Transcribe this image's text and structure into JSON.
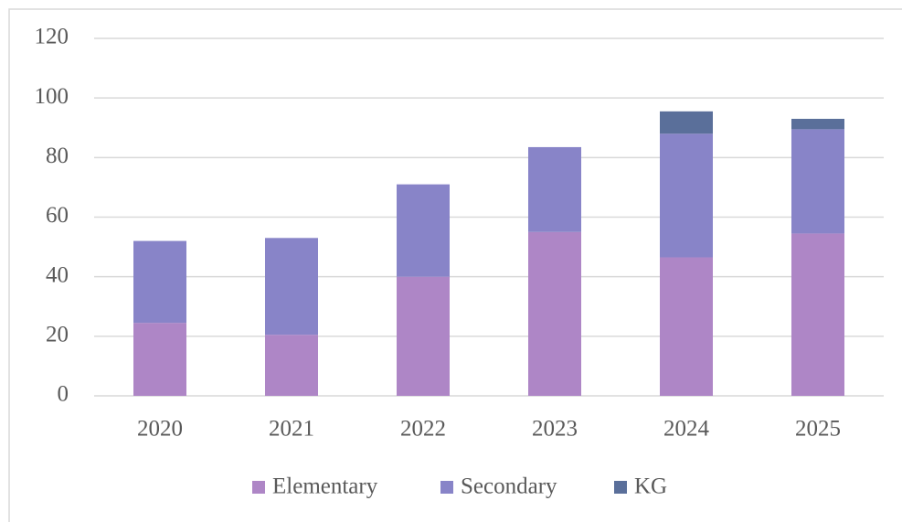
{
  "chart_data": {
    "type": "stacked_bar",
    "categories": [
      "2020",
      "2021",
      "2022",
      "2023",
      "2024",
      "2025"
    ],
    "series": [
      {
        "name": "Elementary",
        "color": "#ae86c6",
        "values": [
          24.5,
          20.5,
          40,
          55,
          46.5,
          54.5
        ]
      },
      {
        "name": "Secondary",
        "color": "#8884c8",
        "values": [
          27.5,
          32.5,
          31,
          28.5,
          41.5,
          35
        ]
      },
      {
        "name": "KG",
        "color": "#5a6f9a",
        "values": [
          0,
          0,
          0,
          0,
          7.5,
          3.5
        ]
      }
    ],
    "ylim": [
      0,
      120
    ],
    "yticks": [
      0,
      20,
      40,
      60,
      80,
      100,
      120
    ],
    "grid": true,
    "legend": "bottom"
  }
}
